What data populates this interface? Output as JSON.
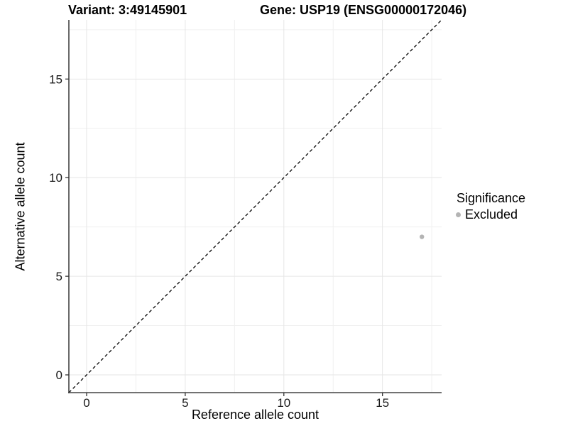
{
  "figure": {
    "title_left": "Variant: 3:49145901",
    "title_right": "Gene: USP19 (ENSG00000172046)"
  },
  "chart_data": {
    "type": "scatter",
    "xlabel": "Reference allele count",
    "ylabel": "Alternative allele count",
    "xlim": [
      -0.9,
      18.0
    ],
    "ylim": [
      -0.9,
      18.0
    ],
    "x_ticks": [
      0,
      5,
      10,
      15
    ],
    "y_ticks": [
      0,
      5,
      10,
      15
    ],
    "x_minor_ticks": [
      2.5,
      7.5,
      12.5,
      17.5
    ],
    "y_minor_ticks": [
      2.5,
      7.5,
      12.5,
      17.5
    ],
    "grid": "on",
    "legend_position": "right",
    "series": [
      {
        "name": "Excluded",
        "color": "#b4b4b4",
        "points": [
          {
            "x": 17,
            "y": 7
          }
        ]
      }
    ],
    "reference_line": {
      "kind": "identity y=x",
      "style": "dashed",
      "color": "#000000",
      "from": -0.9,
      "to": 18.0
    }
  },
  "legend": {
    "title": "Significance",
    "items": [
      {
        "label": "Excluded",
        "color": "#b4b4b4"
      }
    ]
  },
  "colors": {
    "background": "#ffffff",
    "grid_major": "#e6e6e6",
    "grid_minor": "#f0f0f0",
    "axis_line": "#444444",
    "tick_mark": "#333333",
    "tick_label": "#1a1a1a",
    "point": "#b4b4b4"
  }
}
